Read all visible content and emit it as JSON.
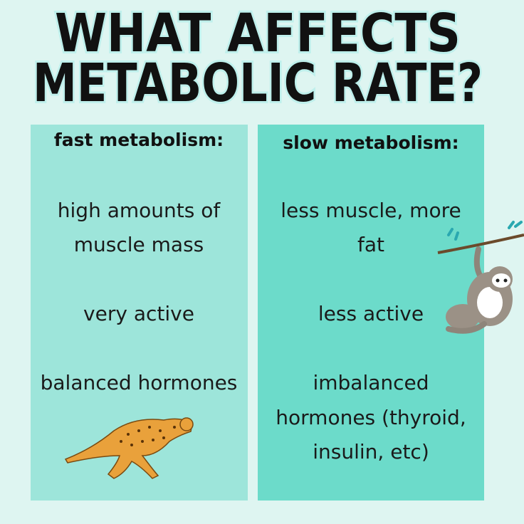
{
  "title": {
    "lines": [
      "WHAT  AFFECTS",
      "METABOLIC RATE?"
    ]
  },
  "columns": [
    {
      "heading": "fast metabolism:",
      "items": [
        [
          "high amounts of",
          "muscle mass"
        ],
        [
          "very active"
        ],
        [
          "balanced hormones"
        ]
      ]
    },
    {
      "heading": "slow metabolism:",
      "items": [
        [
          "less muscle, more",
          "fat"
        ],
        [
          "less active"
        ],
        [
          "imbalanced",
          "hormones (thyroid,",
          "insulin, etc)"
        ]
      ]
    }
  ]
}
